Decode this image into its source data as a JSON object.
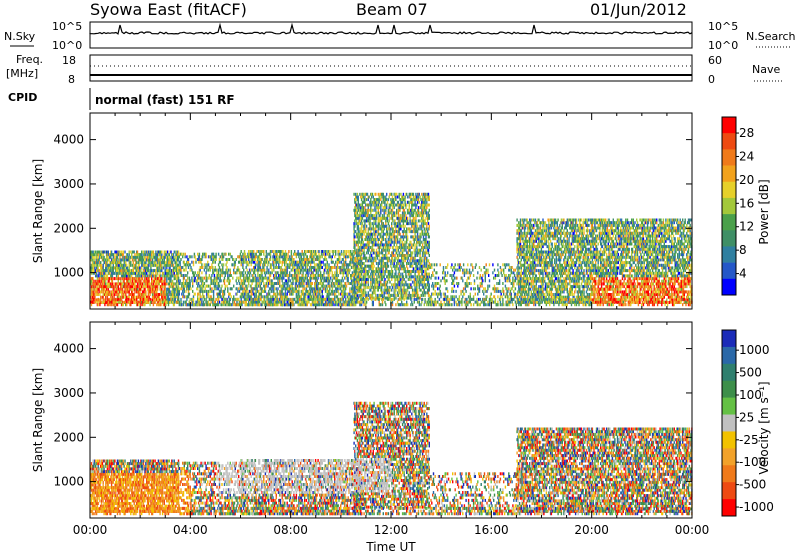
{
  "header": {
    "title": "Syowa East (fitACF)",
    "beam": "Beam 07",
    "date": "01/Jun/2012"
  },
  "panels": {
    "nsky_label": "N.Sky",
    "nsky_ticks": [
      "10^5",
      "10^0"
    ],
    "nsearch_label": "N.Search",
    "nsearch_ticks": [
      "10^5",
      "10^0"
    ],
    "freq_label": "Freq.",
    "freq_unit": "[MHz]",
    "freq_ticks": [
      "18",
      "8"
    ],
    "nave_label": "Nave",
    "nave_ticks": [
      "60",
      "0"
    ],
    "cpid_label": "CPID",
    "cpid_text": "normal (fast) 151 RF"
  },
  "chart_data": [
    {
      "type": "heatmap",
      "name": "power",
      "ylabel": "Slant Range [km]",
      "xlabel": "Time UT",
      "x_ticks": [
        "00:00",
        "04:00",
        "08:00",
        "12:00",
        "16:00",
        "20:00",
        "00:00"
      ],
      "y_ticks": [
        1000,
        2000,
        3000,
        4000
      ],
      "ylim": [
        180,
        4600
      ],
      "xlim_hours": [
        0,
        24
      ],
      "colorbar": {
        "title": "Power [dB]",
        "ticks": [
          "4",
          "8",
          "12",
          "16",
          "20",
          "24",
          "28"
        ],
        "colors": [
          "#0000ff",
          "#2457c8",
          "#2f7fa0",
          "#3f8f66",
          "#4aa04a",
          "#a3c83a",
          "#e6d02a",
          "#f2a21c",
          "#f07a1a",
          "#ee4a12",
          "#ff0000"
        ]
      }
    },
    {
      "type": "heatmap",
      "name": "velocity",
      "ylabel": "Slant Range [km]",
      "xlabel": "Time UT",
      "x_ticks": [
        "00:00",
        "04:00",
        "08:00",
        "12:00",
        "16:00",
        "20:00",
        "00:00"
      ],
      "y_ticks": [
        1000,
        2000,
        3000,
        4000
      ],
      "ylim": [
        180,
        4600
      ],
      "xlim_hours": [
        0,
        24
      ],
      "colorbar": {
        "title": "Velocity [m s⁻¹]",
        "ticks": [
          "1000",
          "500",
          "100",
          "25",
          "-25",
          "-100",
          "-500",
          "-1000"
        ],
        "colors": [
          "#1a2bb8",
          "#2a68a8",
          "#2f7f6e",
          "#3d8f4a",
          "#64c044",
          "#c0c0c0",
          "#f2c200",
          "#f2a22a",
          "#f07a1a",
          "#ee4a12",
          "#ff0000"
        ]
      }
    }
  ]
}
